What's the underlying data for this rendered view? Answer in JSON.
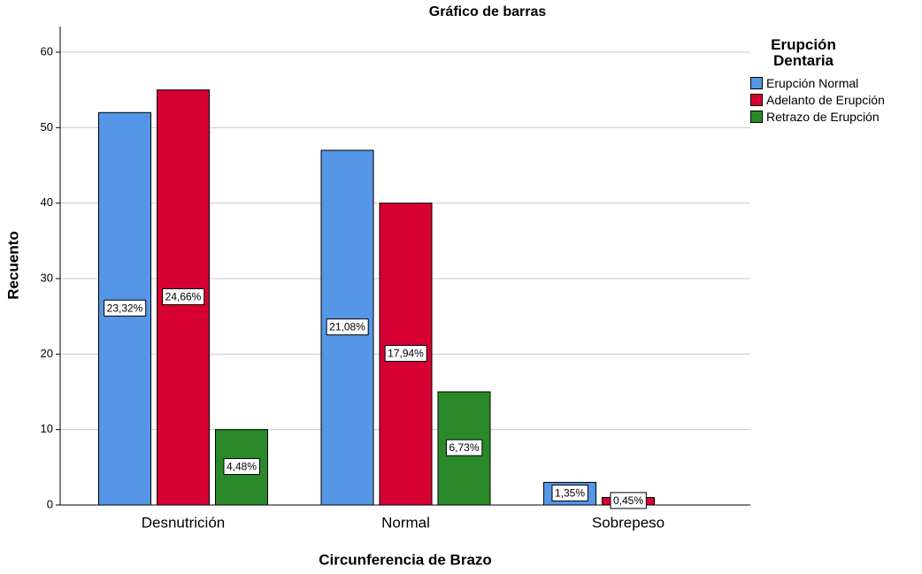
{
  "chart_data": {
    "type": "bar",
    "title": "Gráfico de barras",
    "x_label": "Circunferencia de Brazo",
    "y_label": "Recuento",
    "legend_title": "Erupción Dentaria",
    "categories": [
      "Desnutrición",
      "Normal",
      "Sobrepeso"
    ],
    "series": [
      {
        "name": "Erupción Normal",
        "color": "#5596e6",
        "values": [
          52,
          47,
          3
        ],
        "percent_values": [
          23.32,
          21.08,
          1.35
        ],
        "percent_labels": [
          "23,32%",
          "21,08%",
          "1,35%"
        ]
      },
      {
        "name": "Adelanto de Erupción",
        "color": "#d60032",
        "values": [
          55,
          40,
          1
        ],
        "percent_values": [
          24.66,
          17.94,
          0.45
        ],
        "percent_labels": [
          "24,66%",
          "17,94%",
          "0,45%"
        ]
      },
      {
        "name": "Retrazo de Erupción",
        "color": "#2a8a2a",
        "values": [
          10,
          15,
          0
        ],
        "percent_values": [
          4.48,
          6.73,
          null
        ],
        "percent_labels": [
          "4,48%",
          "6,73%",
          null
        ]
      }
    ],
    "ylim": [
      0,
      63.4
    ],
    "yticks": [
      0,
      10,
      20,
      30,
      40,
      50,
      60
    ],
    "grid": true,
    "legend": "right"
  }
}
